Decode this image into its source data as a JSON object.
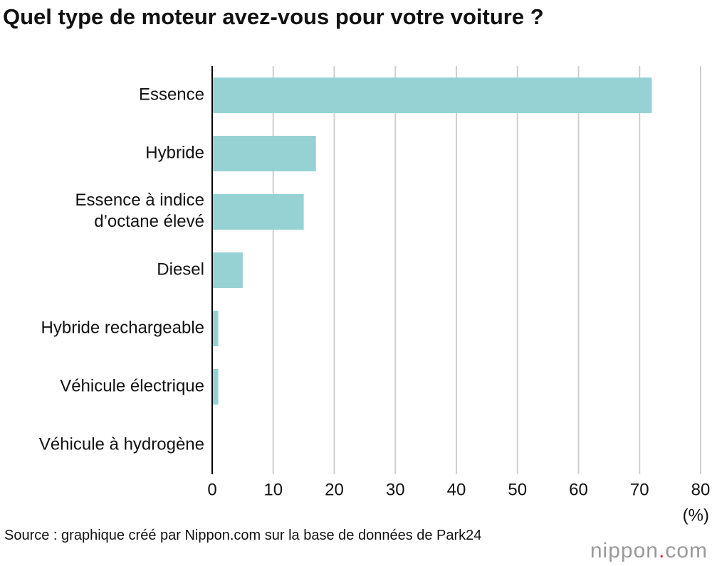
{
  "chart_data": {
    "type": "bar",
    "orientation": "horizontal",
    "title": "Quel type de moteur avez-vous pour votre voiture ?",
    "categories": [
      "Essence",
      "Hybride",
      "Essence à indice\nd’octane élevé",
      "Diesel",
      "Hybride rechargeable",
      "Véhicule électrique",
      "Véhicule à hydrogène"
    ],
    "values": [
      72,
      17,
      15,
      5,
      1,
      1,
      0
    ],
    "color": "#96d2d4",
    "xlim": [
      0,
      80
    ],
    "xticks": [
      0,
      10,
      20,
      30,
      40,
      50,
      60,
      70,
      80
    ],
    "grid": true,
    "unit_label": "(%)",
    "source": "Source : graphique créé par Nippon.com sur la base de données de Park24",
    "logo": {
      "name": "nippon",
      "dot": ".",
      "suffix": "com"
    }
  }
}
